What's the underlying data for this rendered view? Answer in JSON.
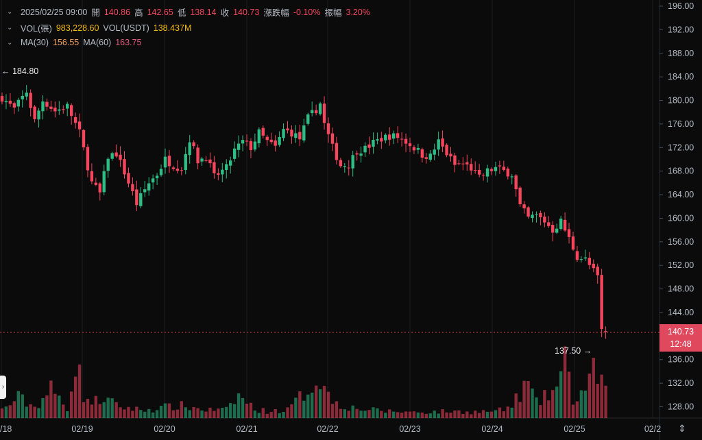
{
  "legend": {
    "row1": {
      "time": "2025/02/25 09:00",
      "open_label": "開",
      "open": "140.86",
      "high_label": "高",
      "high": "142.65",
      "low_label": "低",
      "low": "138.14",
      "close_label": "收",
      "close": "140.73",
      "change_label": "漲跌幅",
      "change": "-0.10%",
      "amp_label": "振幅",
      "amp": "3.20%"
    },
    "row2": {
      "vol_label": "VOL(張)",
      "vol": "983,228.60",
      "vol_usdt_label": "VOL(USDT)",
      "vol_usdt": "138.437M"
    },
    "row3": {
      "ma30_label": "MA(30)",
      "ma30": "156.55",
      "ma60_label": "MA(60)",
      "ma60": "163.75"
    }
  },
  "price_tag": {
    "price": "140.73",
    "countdown": "12:48"
  },
  "markers": {
    "high": "184.80",
    "low": "137.50"
  },
  "colors": {
    "up": "#2ebd85",
    "down": "#f6465d",
    "bg": "#0b0b0c",
    "grid": "#1c1d21"
  },
  "chart_data": {
    "type": "candlestick",
    "x_ticks": [
      "/18",
      "02/19",
      "02/20",
      "02/21",
      "02/22",
      "02/23",
      "02/24",
      "02/25",
      "02/2"
    ],
    "y_ticks": [
      "196.00",
      "192.00",
      "188.00",
      "184.00",
      "180.00",
      "176.00",
      "172.00",
      "168.00",
      "164.00",
      "160.00",
      "156.00",
      "152.00",
      "148.00",
      "144.00",
      "140.00",
      "136.00",
      "132.00",
      "128.00"
    ],
    "ylim": [
      126,
      197
    ],
    "close_series": [
      [
        0,
        180.5
      ],
      [
        3,
        178.5
      ],
      [
        6,
        181.5
      ],
      [
        8,
        176.5
      ],
      [
        10,
        180.0
      ],
      [
        13,
        178.2
      ],
      [
        16,
        179.0
      ],
      [
        19,
        174.5
      ],
      [
        22,
        166.0
      ],
      [
        24,
        164.2
      ],
      [
        26,
        170.5
      ],
      [
        28,
        171.0
      ],
      [
        30,
        167.8
      ],
      [
        33,
        162.5
      ],
      [
        36,
        166.0
      ],
      [
        38,
        167.5
      ],
      [
        40,
        170.0
      ],
      [
        42,
        169.0
      ],
      [
        44,
        168.5
      ],
      [
        46,
        173.5
      ],
      [
        48,
        169.8
      ],
      [
        50,
        170.5
      ],
      [
        52,
        167.0
      ],
      [
        55,
        168.5
      ],
      [
        57,
        171.5
      ],
      [
        59,
        173.0
      ],
      [
        61,
        172.0
      ],
      [
        63,
        174.5
      ],
      [
        65,
        173.0
      ],
      [
        67,
        172.0
      ],
      [
        69,
        175.0
      ],
      [
        71,
        174.5
      ],
      [
        73,
        173.5
      ],
      [
        75,
        177.0
      ],
      [
        77,
        178.5
      ],
      [
        78,
        179.5
      ],
      [
        79,
        176.0
      ],
      [
        81,
        172.0
      ],
      [
        83,
        169.0
      ],
      [
        85,
        169.2
      ],
      [
        87,
        171.5
      ],
      [
        89,
        171.8
      ],
      [
        91,
        172.8
      ],
      [
        93,
        173.5
      ],
      [
        95,
        174.0
      ],
      [
        97,
        173.8
      ],
      [
        99,
        173.0
      ],
      [
        101,
        172.0
      ],
      [
        103,
        170.8
      ],
      [
        105,
        170.5
      ],
      [
        107,
        173.0
      ],
      [
        109,
        171.0
      ],
      [
        111,
        169.0
      ],
      [
        113,
        169.2
      ],
      [
        115,
        168.5
      ],
      [
        117,
        166.8
      ],
      [
        119,
        168.0
      ],
      [
        121,
        168.5
      ],
      [
        123,
        168.0
      ],
      [
        125,
        167.5
      ],
      [
        127,
        162.0
      ],
      [
        129,
        160.0
      ],
      [
        131,
        160.5
      ],
      [
        133,
        159.5
      ],
      [
        135,
        158.0
      ],
      [
        137,
        159.5
      ],
      [
        139,
        156.5
      ],
      [
        141,
        153.5
      ],
      [
        143,
        153.0
      ],
      [
        145,
        151.0
      ],
      [
        146,
        150.0
      ],
      [
        147,
        140.9
      ],
      [
        148,
        140.7
      ]
    ],
    "volume_series": [
      [
        0,
        0.12
      ],
      [
        4,
        0.3
      ],
      [
        8,
        0.16
      ],
      [
        12,
        0.42
      ],
      [
        16,
        0.15
      ],
      [
        18,
        0.85
      ],
      [
        20,
        0.35
      ],
      [
        22,
        0.22
      ],
      [
        25,
        0.3
      ],
      [
        28,
        0.18
      ],
      [
        31,
        0.15
      ],
      [
        34,
        0.12
      ],
      [
        37,
        0.13
      ],
      [
        40,
        0.16
      ],
      [
        44,
        0.18
      ],
      [
        47,
        0.15
      ],
      [
        50,
        0.12
      ],
      [
        55,
        0.12
      ],
      [
        58,
        0.33
      ],
      [
        62,
        0.13
      ],
      [
        65,
        0.1
      ],
      [
        70,
        0.12
      ],
      [
        74,
        0.36
      ],
      [
        78,
        0.62
      ],
      [
        80,
        0.32
      ],
      [
        83,
        0.2
      ],
      [
        86,
        0.15
      ],
      [
        90,
        0.12
      ],
      [
        95,
        0.1
      ],
      [
        100,
        0.09
      ],
      [
        105,
        0.09
      ],
      [
        110,
        0.1
      ],
      [
        115,
        0.09
      ],
      [
        120,
        0.1
      ],
      [
        123,
        0.12
      ],
      [
        125,
        0.18
      ],
      [
        127,
        0.37
      ],
      [
        129,
        0.5
      ],
      [
        131,
        0.22
      ],
      [
        133,
        0.3
      ],
      [
        136,
        0.45
      ],
      [
        138,
        0.8
      ],
      [
        140,
        0.28
      ],
      [
        142,
        0.35
      ],
      [
        144,
        0.63
      ],
      [
        145,
        0.65
      ],
      [
        146,
        0.38
      ],
      [
        147,
        0.85
      ],
      [
        148,
        0.4
      ]
    ]
  }
}
